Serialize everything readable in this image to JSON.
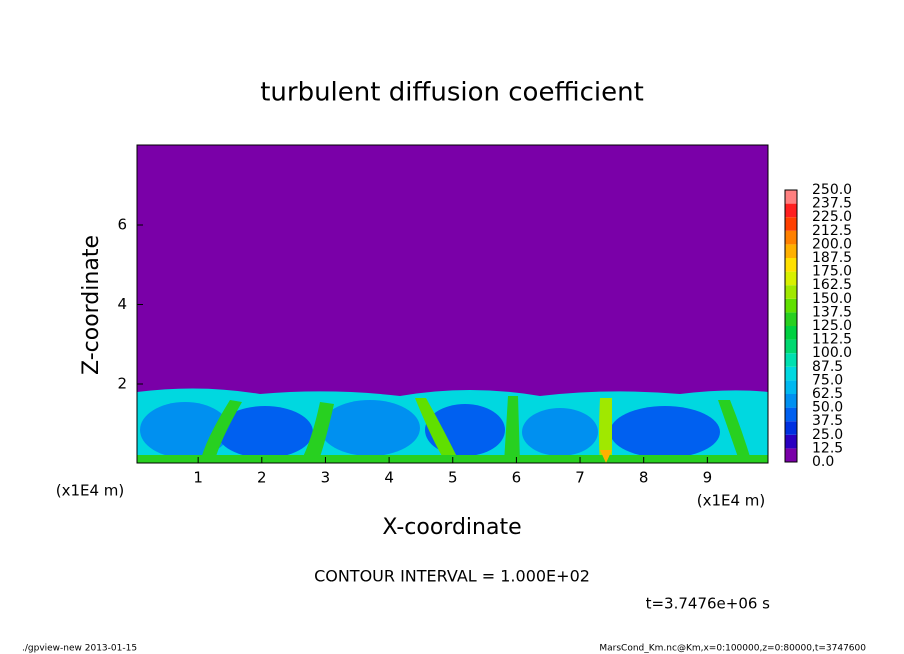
{
  "chart_data": {
    "type": "contour",
    "title": "turbulent diffusion coefficient",
    "x_label": "X-coordinate",
    "y_label": "Z-coordinate",
    "axis_unit": "(x1E4 m)",
    "xlim": [
      0,
      10
    ],
    "ylim": [
      0,
      8
    ],
    "xticks": [
      1,
      2,
      3,
      4,
      5,
      6,
      7,
      8,
      9
    ],
    "yticks": [
      2,
      4,
      6
    ],
    "background_color": "#7a00a8",
    "colorbar": {
      "levels": [
        {
          "value": 0,
          "label": "0.0"
        },
        12.5,
        {
          "value": 25,
          "label": "25.0"
        },
        37.5,
        {
          "value": 50,
          "label": "50.0"
        },
        62.5,
        {
          "value": 75,
          "label": "75.0"
        },
        87.5,
        {
          "value": 100,
          "label": "100.0"
        },
        112.5,
        {
          "value": 125,
          "label": "125.0"
        },
        137.5,
        {
          "value": 150,
          "label": "150.0"
        },
        162.5,
        {
          "value": 175,
          "label": "175.0"
        },
        187.5,
        {
          "value": 200,
          "label": "200.0"
        },
        212.5,
        {
          "value": 225,
          "label": "225.0"
        },
        237.5,
        {
          "value": 250,
          "label": "250.0"
        }
      ],
      "colors": [
        "#7a00a8",
        "#2a00c0",
        "#0030e0",
        "#0060f0",
        "#0090f0",
        "#00b8f0",
        "#00d8e0",
        "#00e0b0",
        "#00d870",
        "#00d040",
        "#28d020",
        "#60e000",
        "#a0e800",
        "#d8f000",
        "#ffe000",
        "#ffb000",
        "#ff8000",
        "#ff4000",
        "#ff2020",
        "#ff8080"
      ]
    },
    "contour_interval": "CONTOUR INTERVAL = 1.000E+02",
    "time_label": "t=3.7476e+06 s",
    "footer_left": "./gpview-new  2013-01-15",
    "footer_right": "MarsCond_Km.nc@Km,x=0:100000,z=0:80000,t=3747600"
  }
}
